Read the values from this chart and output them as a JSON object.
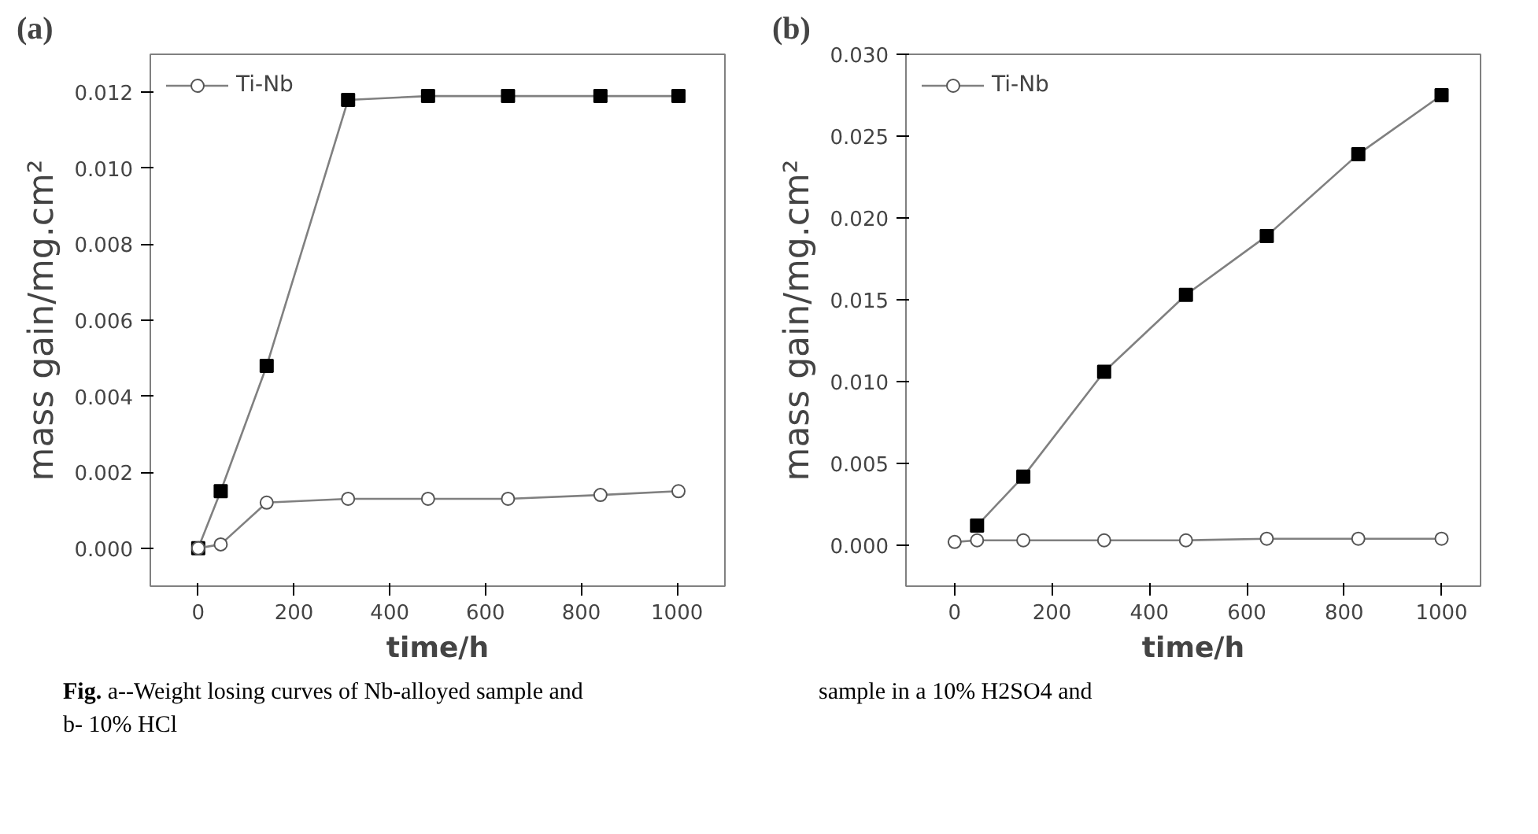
{
  "chart_data": [
    {
      "type": "line",
      "title": "(a)",
      "xlabel": "time/h",
      "ylabel": "mass gain/mg.cm²",
      "marker": "circle",
      "legend": "top left",
      "grid": false,
      "x": [
        0,
        47,
        143,
        313,
        480,
        647,
        840,
        1003
      ],
      "xlim": [
        -100,
        1100
      ],
      "xticks": [
        0,
        200,
        400,
        600,
        800,
        1000
      ],
      "ylim": [
        -0.001,
        0.013
      ],
      "yticks": [
        {
          "value": 0,
          "label": "0.000"
        },
        {
          "value": 0.002,
          "label": "0.002"
        },
        {
          "value": 0.004,
          "label": "0.004"
        },
        {
          "value": 0.006,
          "label": "0.006"
        },
        {
          "value": 0.008,
          "label": "0.008"
        },
        {
          "value": 0.01,
          "label": "0.010"
        },
        {
          "value": 0.012,
          "label": "0.012"
        }
      ],
      "series": [
        {
          "color": "#000000",
          "marker": "square",
          "values": [
            0,
            0.0015,
            0.0048,
            0.0118,
            0.0119,
            0.0119,
            0.0119,
            0.0119
          ]
        },
        {
          "name": "Ti-Nb",
          "color": "#ffffff",
          "values": [
            0,
            0.0001,
            0.0012,
            0.0013,
            0.0013,
            0.0013,
            0.0014,
            0.0015
          ]
        }
      ],
      "annotations": [
        "Fig.   a--Weight losing curves of Nb-alloyed sample and",
        "b- 10% HCl"
      ]
    },
    {
      "type": "line",
      "title": "(b)",
      "xlabel": "time/h",
      "ylabel": "mass gain/mg.cm²",
      "marker": "circle",
      "legend": "top left",
      "grid": false,
      "x": [
        0,
        46,
        141,
        307,
        475,
        641,
        829,
        1000
      ],
      "xlim": [
        -100,
        1080
      ],
      "xticks": [
        0,
        200,
        400,
        600,
        800,
        1000
      ],
      "ylim": [
        -0.0025,
        0.03
      ],
      "yticks": [
        {
          "value": 0,
          "label": "0.000"
        },
        {
          "value": 0.005,
          "label": "0.005"
        },
        {
          "value": 0.01,
          "label": "0.010"
        },
        {
          "value": 0.015,
          "label": "0.015"
        },
        {
          "value": 0.02,
          "label": "0.020"
        },
        {
          "value": 0.025,
          "label": "0.025"
        },
        {
          "value": 0.03,
          "label": "0.030"
        }
      ],
      "series": [
        {
          "color": "#000000",
          "marker": "square",
          "values": [
            null,
            0.0012,
            0.0042,
            0.0106,
            0.0153,
            0.0189,
            0.0239,
            0.0275
          ]
        },
        {
          "name": "Ti-Nb",
          "color": "#ffffff",
          "values": [
            0.0002,
            0.0003,
            0.0003,
            0.0003,
            0.0003,
            0.0004,
            0.0004,
            0.0004
          ]
        }
      ],
      "annotations": [
        "sample in a 10% H2SO4 and"
      ]
    }
  ]
}
